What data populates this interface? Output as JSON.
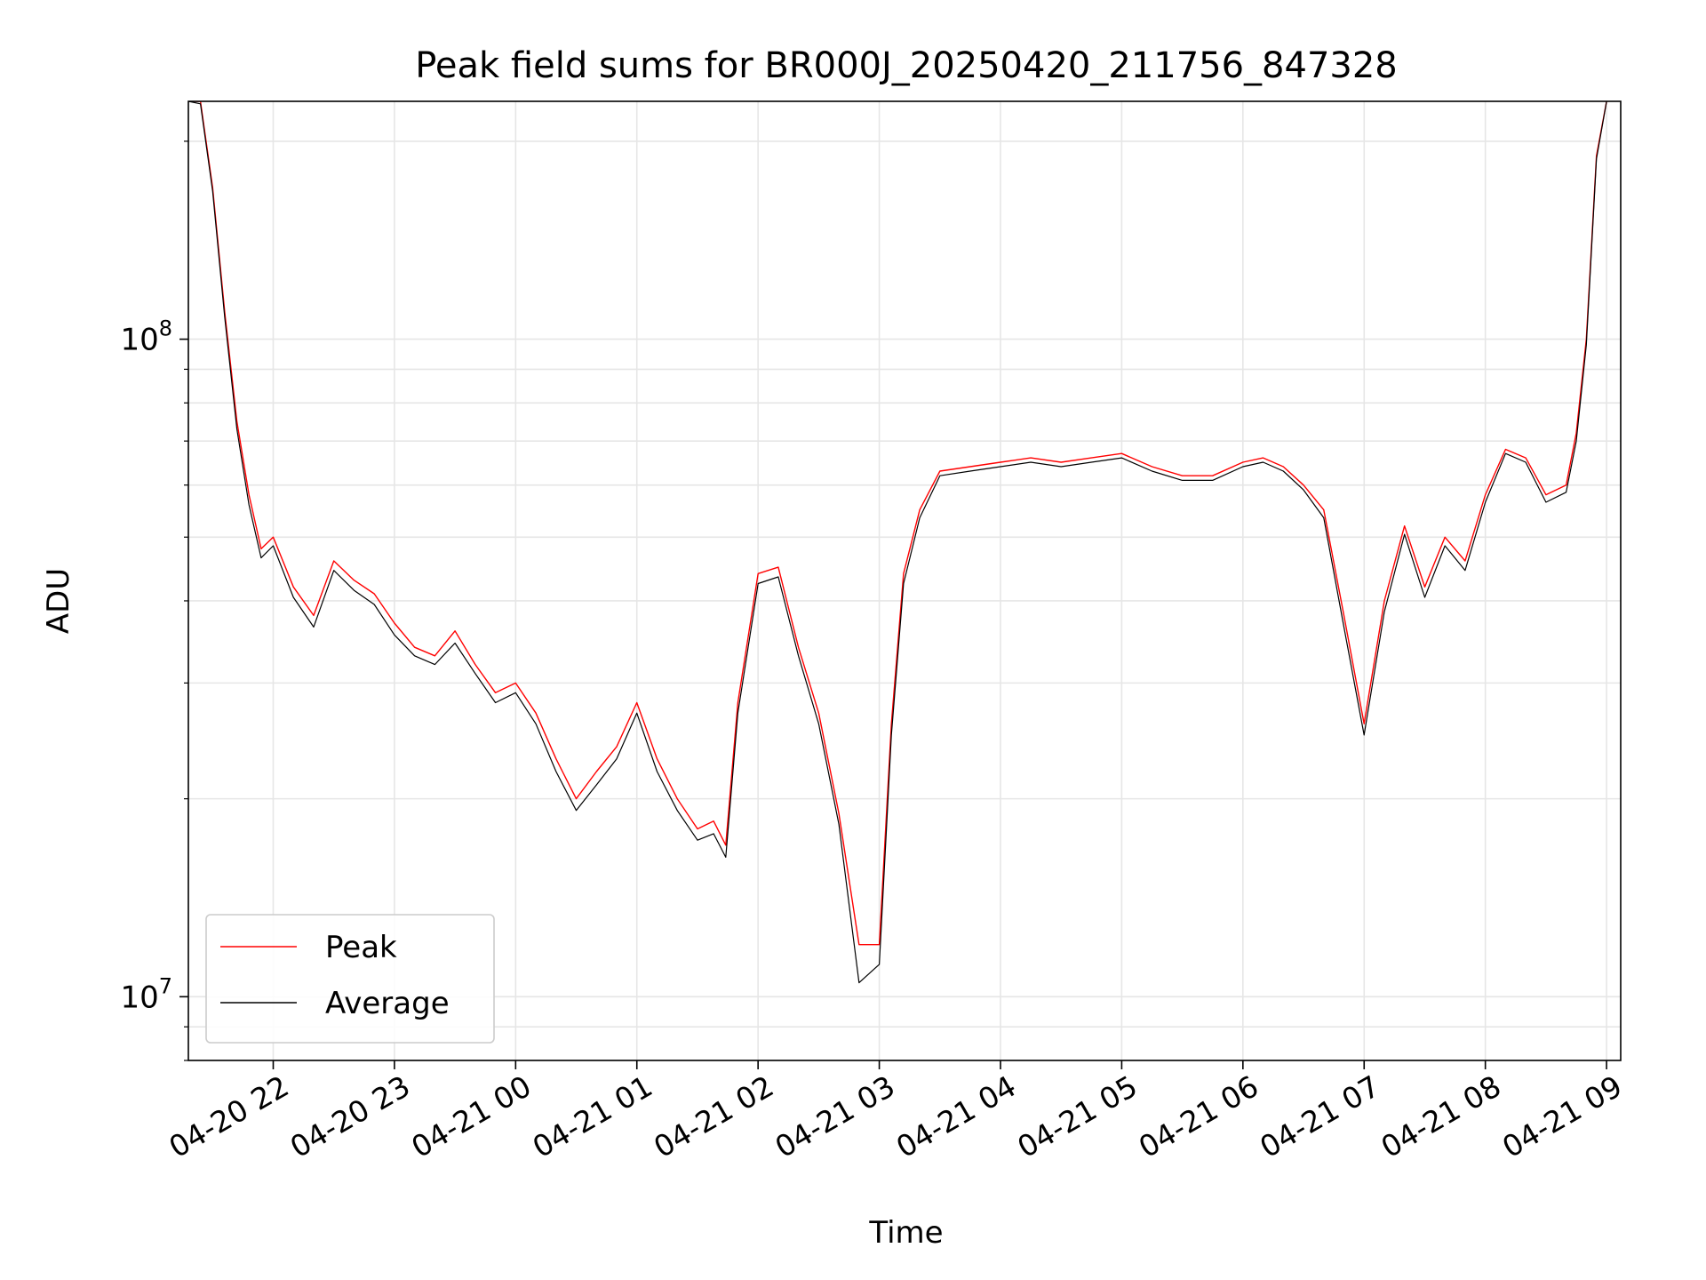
{
  "chart_data": {
    "type": "line",
    "title": "Peak field sums for BR000J_20250420_211756_847328",
    "xlabel": "Time",
    "ylabel": "ADU",
    "yscale": "log",
    "ylim": [
      8000000,
      230000000
    ],
    "xlim": [
      "2025-04-20 21:18",
      "2025-04-21 09:07"
    ],
    "x_ticks": [
      "2025-04-20 22:00",
      "2025-04-20 23:00",
      "2025-04-21 00:00",
      "2025-04-21 01:00",
      "2025-04-21 02:00",
      "2025-04-21 03:00",
      "2025-04-21 04:00",
      "2025-04-21 05:00",
      "2025-04-21 06:00",
      "2025-04-21 07:00",
      "2025-04-21 08:00",
      "2025-04-21 09:00"
    ],
    "x_tick_labels": [
      "04-20 22",
      "04-20 23",
      "04-21 00",
      "04-21 01",
      "04-21 02",
      "04-21 03",
      "04-21 04",
      "04-21 05",
      "04-21 06",
      "04-21 07",
      "04-21 08",
      "04-21 09"
    ],
    "y_ticks": [
      10000000,
      100000000
    ],
    "y_tick_labels": [
      {
        "base": "10",
        "exp": "7"
      },
      {
        "base": "10",
        "exp": "8"
      }
    ],
    "grid": true,
    "legend": "lower-left",
    "series": [
      {
        "name": "Peak",
        "color": "#ff0000",
        "x": [
          "2025-04-20 21:18",
          "2025-04-20 21:24",
          "2025-04-20 21:30",
          "2025-04-20 21:36",
          "2025-04-20 21:42",
          "2025-04-20 21:48",
          "2025-04-20 21:54",
          "2025-04-20 22:00",
          "2025-04-20 22:10",
          "2025-04-20 22:20",
          "2025-04-20 22:30",
          "2025-04-20 22:40",
          "2025-04-20 22:50",
          "2025-04-20 23:00",
          "2025-04-20 23:10",
          "2025-04-20 23:20",
          "2025-04-20 23:30",
          "2025-04-20 23:40",
          "2025-04-20 23:50",
          "2025-04-21 00:00",
          "2025-04-21 00:10",
          "2025-04-21 00:20",
          "2025-04-21 00:30",
          "2025-04-21 00:40",
          "2025-04-21 00:50",
          "2025-04-21 01:00",
          "2025-04-21 01:10",
          "2025-04-21 01:20",
          "2025-04-21 01:30",
          "2025-04-21 01:38",
          "2025-04-21 01:44",
          "2025-04-21 01:50",
          "2025-04-21 02:00",
          "2025-04-21 02:10",
          "2025-04-21 02:20",
          "2025-04-21 02:30",
          "2025-04-21 02:40",
          "2025-04-21 02:50",
          "2025-04-21 03:00",
          "2025-04-21 03:06",
          "2025-04-21 03:12",
          "2025-04-21 03:20",
          "2025-04-21 03:30",
          "2025-04-21 03:45",
          "2025-04-21 04:00",
          "2025-04-21 04:15",
          "2025-04-21 04:30",
          "2025-04-21 04:45",
          "2025-04-21 05:00",
          "2025-04-21 05:15",
          "2025-04-21 05:30",
          "2025-04-21 05:45",
          "2025-04-21 06:00",
          "2025-04-21 06:10",
          "2025-04-21 06:20",
          "2025-04-21 06:30",
          "2025-04-21 06:40",
          "2025-04-21 06:50",
          "2025-04-21 07:00",
          "2025-04-21 07:10",
          "2025-04-21 07:20",
          "2025-04-21 07:30",
          "2025-04-21 07:40",
          "2025-04-21 07:50",
          "2025-04-21 08:00",
          "2025-04-21 08:10",
          "2025-04-21 08:20",
          "2025-04-21 08:30",
          "2025-04-21 08:40",
          "2025-04-21 08:45",
          "2025-04-21 08:50",
          "2025-04-21 08:55",
          "2025-04-21 09:00"
        ],
        "values": [
          230000000,
          230000000,
          170000000,
          110000000,
          75000000,
          58000000,
          48000000,
          50000000,
          42000000,
          38000000,
          46000000,
          43000000,
          41000000,
          37000000,
          34000000,
          33000000,
          36000000,
          32000000,
          29000000,
          30000000,
          27000000,
          23000000,
          20000000,
          22000000,
          24000000,
          28000000,
          23000000,
          20000000,
          18000000,
          18500000,
          17000000,
          28000000,
          44000000,
          45000000,
          34000000,
          27000000,
          19000000,
          12000000,
          12000000,
          26000000,
          44000000,
          55000000,
          63000000,
          64000000,
          65000000,
          66000000,
          65000000,
          66000000,
          67000000,
          64000000,
          62000000,
          62000000,
          65000000,
          66000000,
          64000000,
          60000000,
          55000000,
          38000000,
          26000000,
          40000000,
          52000000,
          42000000,
          50000000,
          46000000,
          58000000,
          68000000,
          66000000,
          58000000,
          60000000,
          72000000,
          100000000,
          190000000,
          230000000
        ]
      },
      {
        "name": "Average",
        "color": "#000000",
        "x": [
          "2025-04-20 21:18",
          "2025-04-20 21:24",
          "2025-04-20 21:30",
          "2025-04-20 21:36",
          "2025-04-20 21:42",
          "2025-04-20 21:48",
          "2025-04-20 21:54",
          "2025-04-20 22:00",
          "2025-04-20 22:10",
          "2025-04-20 22:20",
          "2025-04-20 22:30",
          "2025-04-20 22:40",
          "2025-04-20 22:50",
          "2025-04-20 23:00",
          "2025-04-20 23:10",
          "2025-04-20 23:20",
          "2025-04-20 23:30",
          "2025-04-20 23:40",
          "2025-04-20 23:50",
          "2025-04-21 00:00",
          "2025-04-21 00:10",
          "2025-04-21 00:20",
          "2025-04-21 00:30",
          "2025-04-21 00:40",
          "2025-04-21 00:50",
          "2025-04-21 01:00",
          "2025-04-21 01:10",
          "2025-04-21 01:20",
          "2025-04-21 01:30",
          "2025-04-21 01:38",
          "2025-04-21 01:44",
          "2025-04-21 01:50",
          "2025-04-21 02:00",
          "2025-04-21 02:10",
          "2025-04-21 02:20",
          "2025-04-21 02:30",
          "2025-04-21 02:40",
          "2025-04-21 02:50",
          "2025-04-21 03:00",
          "2025-04-21 03:06",
          "2025-04-21 03:12",
          "2025-04-21 03:20",
          "2025-04-21 03:30",
          "2025-04-21 03:45",
          "2025-04-21 04:00",
          "2025-04-21 04:15",
          "2025-04-21 04:30",
          "2025-04-21 04:45",
          "2025-04-21 05:00",
          "2025-04-21 05:15",
          "2025-04-21 05:30",
          "2025-04-21 05:45",
          "2025-04-21 06:00",
          "2025-04-21 06:10",
          "2025-04-21 06:20",
          "2025-04-21 06:30",
          "2025-04-21 06:40",
          "2025-04-21 06:50",
          "2025-04-21 07:00",
          "2025-04-21 07:10",
          "2025-04-21 07:20",
          "2025-04-21 07:30",
          "2025-04-21 07:40",
          "2025-04-21 07:50",
          "2025-04-21 08:00",
          "2025-04-21 08:10",
          "2025-04-21 08:20",
          "2025-04-21 08:30",
          "2025-04-21 08:40",
          "2025-04-21 08:45",
          "2025-04-21 08:50",
          "2025-04-21 08:55",
          "2025-04-21 09:00"
        ],
        "values": [
          230000000,
          228000000,
          168000000,
          108000000,
          73000000,
          56000000,
          46500000,
          48500000,
          40500000,
          36500000,
          44500000,
          41500000,
          39500000,
          35500000,
          33000000,
          32000000,
          34500000,
          31000000,
          28000000,
          29000000,
          26000000,
          22000000,
          19200000,
          21000000,
          23000000,
          27000000,
          22000000,
          19200000,
          17300000,
          17700000,
          16300000,
          27000000,
          42500000,
          43500000,
          33000000,
          26000000,
          18300000,
          10500000,
          11200000,
          25000000,
          42500000,
          53500000,
          62000000,
          63000000,
          64000000,
          65000000,
          64000000,
          65000000,
          66000000,
          63000000,
          61000000,
          61000000,
          64000000,
          65000000,
          63000000,
          59000000,
          53500000,
          36500000,
          25000000,
          38500000,
          50500000,
          40500000,
          48500000,
          44500000,
          56500000,
          67000000,
          65000000,
          56500000,
          58500000,
          70000000,
          98000000,
          188000000,
          230000000
        ]
      }
    ]
  }
}
